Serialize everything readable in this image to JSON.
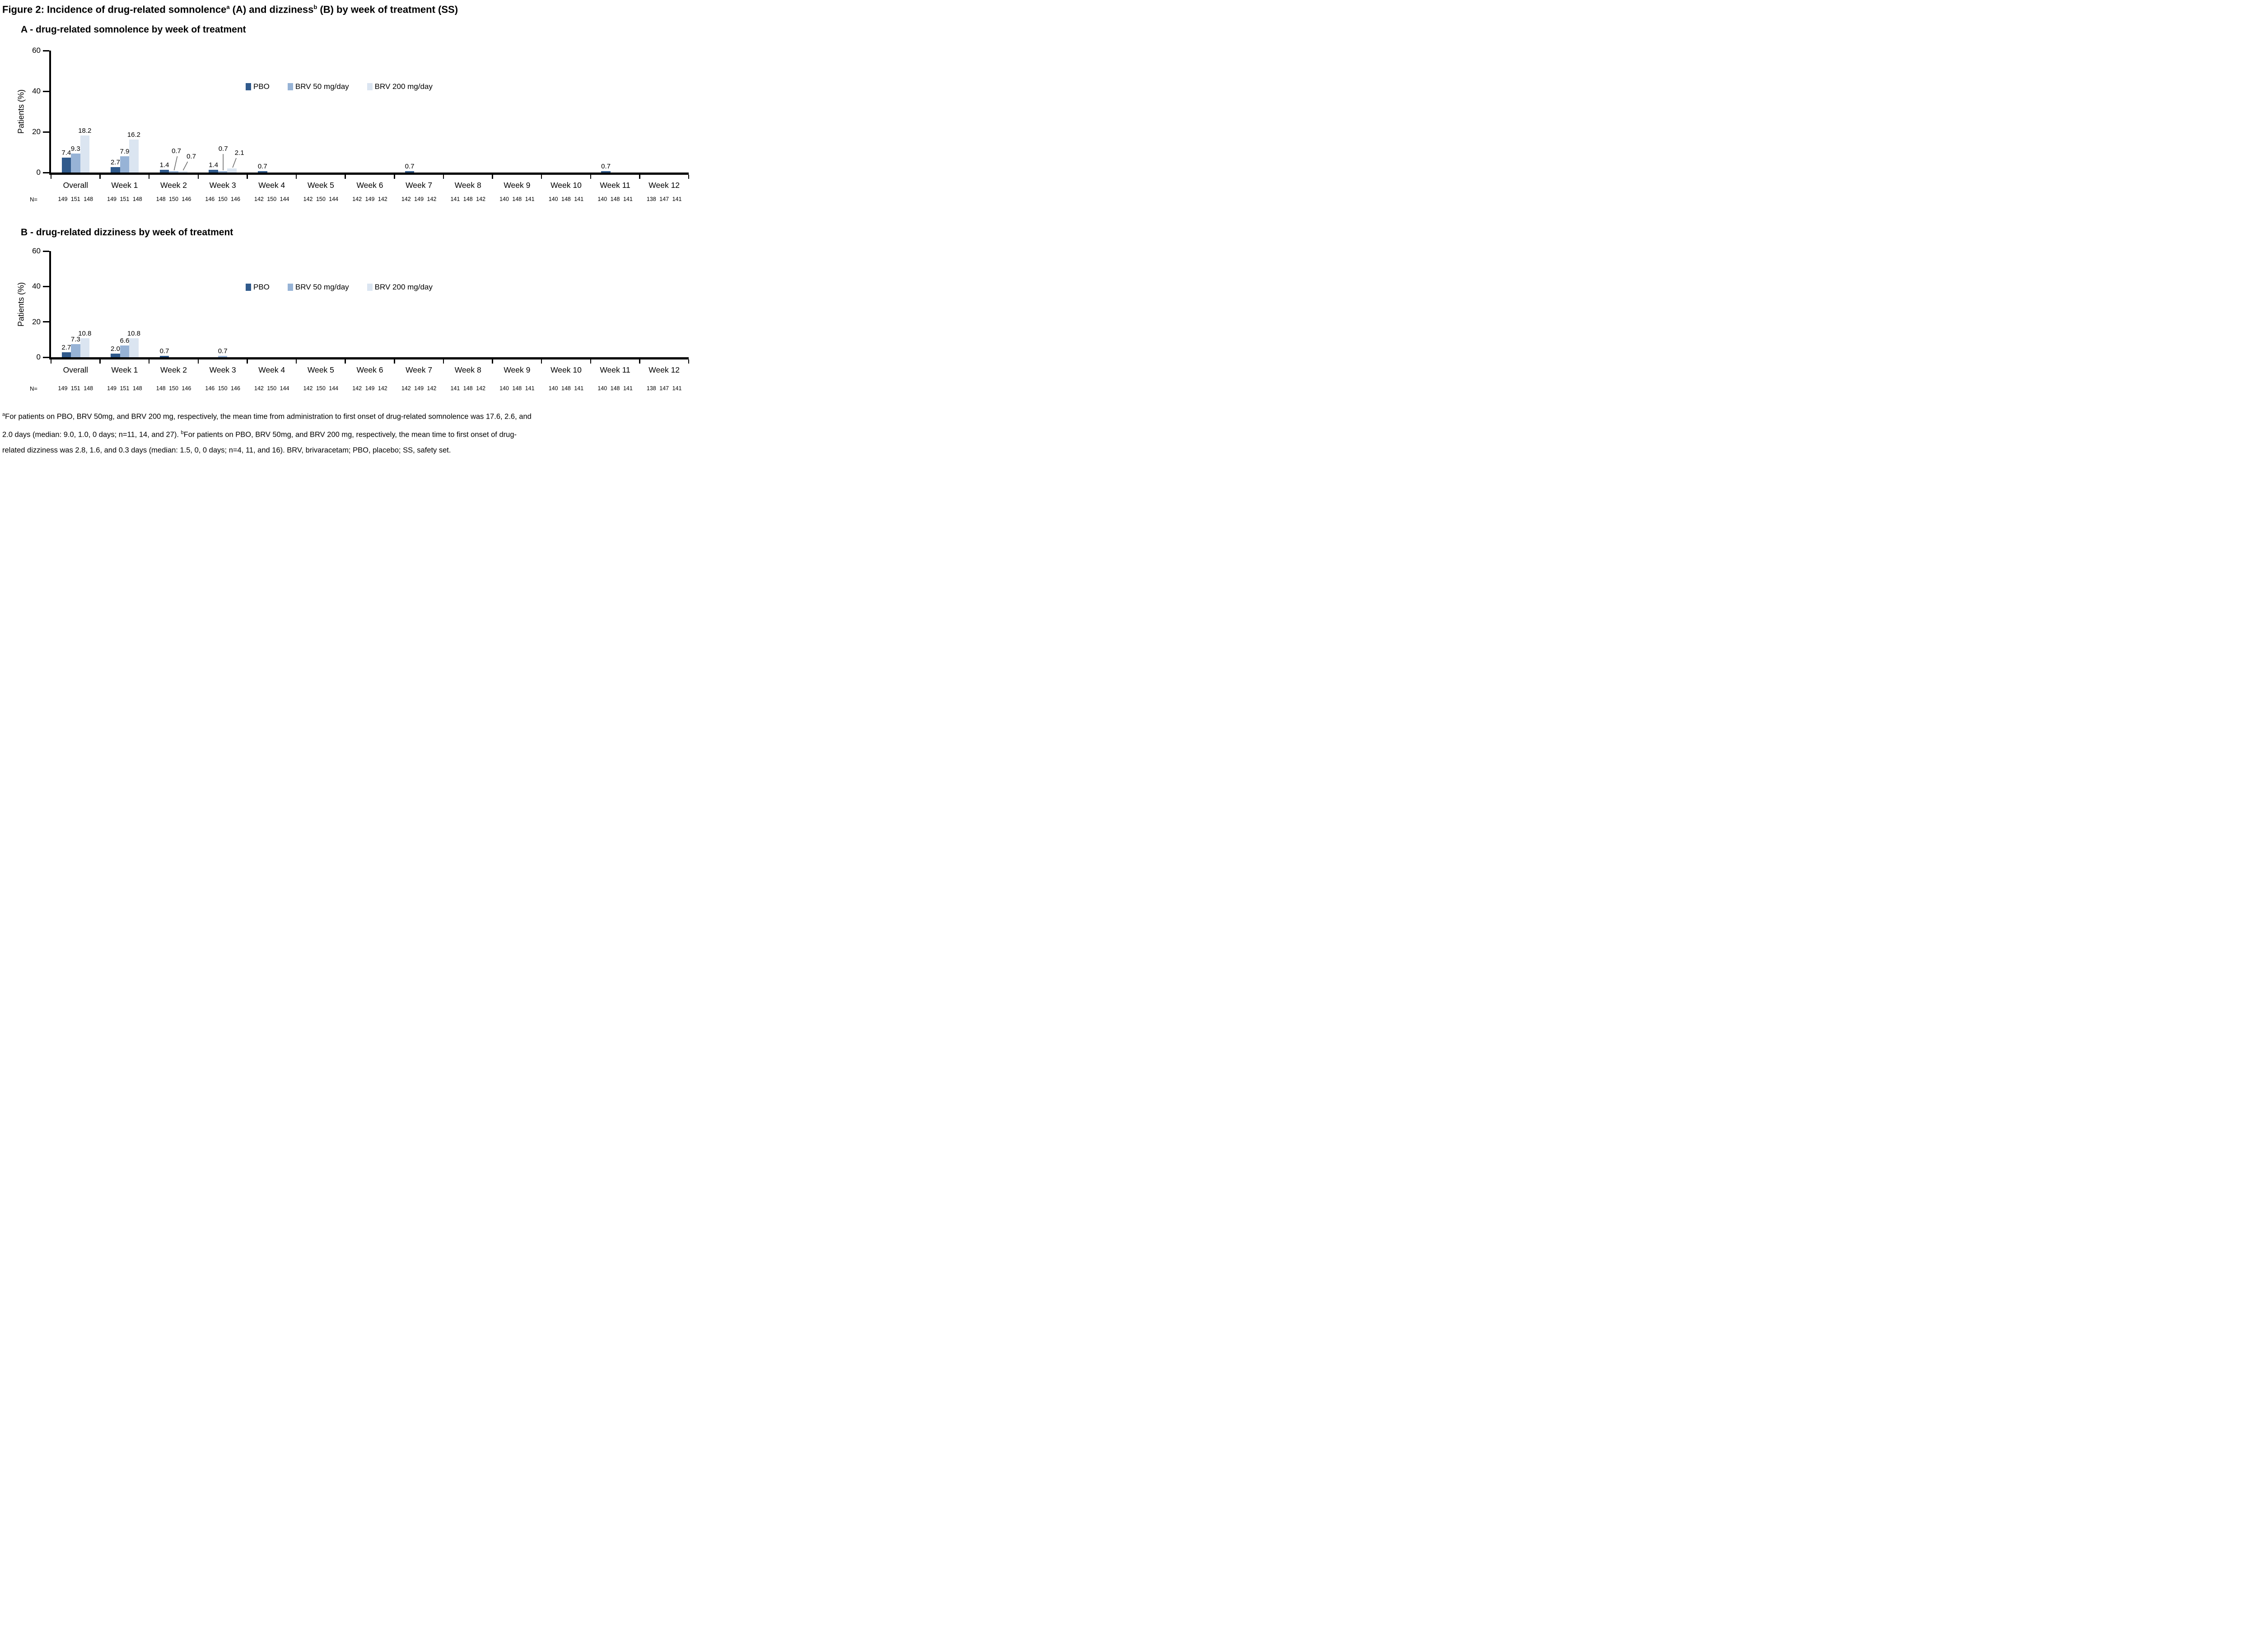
{
  "title_segments": [
    {
      "t": "Figure 2: Incidence of drug-related somnolence"
    },
    {
      "sup": "a"
    },
    {
      "t": " (A) and dizziness"
    },
    {
      "sup": "b"
    },
    {
      "t": " (B) by week of treatment (SS)"
    }
  ],
  "chart_data": [
    {
      "id": "A",
      "type": "bar",
      "heading": "A - drug-related somnolence by week of treatment",
      "ylabel": "Patients (%)",
      "ylim": [
        0,
        60
      ],
      "yticks": [
        0,
        20,
        40,
        60
      ],
      "grid": false,
      "legend_position": "inside-top",
      "categories": [
        "Overall",
        "Week 1",
        "Week 2",
        "Week 3",
        "Week 4",
        "Week 5",
        "Week 6",
        "Week 7",
        "Week 8",
        "Week 9",
        "Week 10",
        "Week 11",
        "Week 12"
      ],
      "series": [
        {
          "name": "PBO",
          "color": "#305A8C",
          "values": [
            7.4,
            2.7,
            1.4,
            1.4,
            0.7,
            0,
            0,
            0.7,
            0,
            0,
            0,
            0.7,
            0
          ]
        },
        {
          "name": "BRV 50 mg/day",
          "color": "#97B3D6",
          "values": [
            9.3,
            7.9,
            0.7,
            0.7,
            0,
            0,
            0,
            0,
            0,
            0,
            0,
            0,
            0
          ]
        },
        {
          "name": "BRV 200 mg/day",
          "color": "#DBE5F1",
          "values": [
            18.2,
            16.2,
            0.7,
            2.1,
            0,
            0,
            0,
            0,
            0,
            0,
            0,
            0,
            0
          ]
        }
      ],
      "callouts": [
        [
          2,
          1
        ],
        [
          2,
          2
        ],
        [
          3,
          1
        ],
        [
          3,
          2
        ]
      ],
      "n_label": "N=",
      "n_values": [
        "149 151 148",
        "149 151 148",
        "148 150 146",
        "146 150 146",
        "142 150 144",
        "142 150 144",
        "142 149 142",
        "142 149 142",
        "141 148 142",
        "140 148 141",
        "140 148 141",
        "140 148 141",
        "138 147 141"
      ]
    },
    {
      "id": "B",
      "type": "bar",
      "heading": "B - drug-related dizziness by week of treatment",
      "ylabel": "Patients (%)",
      "ylim": [
        0,
        60
      ],
      "yticks": [
        0,
        20,
        40,
        60
      ],
      "grid": false,
      "legend_position": "inside-top",
      "categories": [
        "Overall",
        "Week 1",
        "Week 2",
        "Week 3",
        "Week 4",
        "Week 5",
        "Week 6",
        "Week 7",
        "Week 8",
        "Week 9",
        "Week 10",
        "Week 11",
        "Week 12"
      ],
      "series": [
        {
          "name": "PBO",
          "color": "#305A8C",
          "values": [
            2.7,
            2.0,
            0.7,
            0,
            0,
            0,
            0,
            0,
            0,
            0,
            0,
            0,
            0
          ]
        },
        {
          "name": "BRV 50 mg/day",
          "color": "#97B3D6",
          "values": [
            7.3,
            6.6,
            0,
            0.7,
            0,
            0,
            0,
            0,
            0,
            0,
            0,
            0,
            0
          ]
        },
        {
          "name": "BRV 200 mg/day",
          "color": "#DBE5F1",
          "values": [
            10.8,
            10.8,
            0,
            0,
            0,
            0,
            0,
            0,
            0,
            0,
            0,
            0,
            0
          ]
        }
      ],
      "callouts": [],
      "n_label": "N=",
      "n_values": [
        "149 151 148",
        "149 151 148",
        "148 150 146",
        "146 150 146",
        "142 150 144",
        "142 150 144",
        "142 149 142",
        "142 149 142",
        "141 148 142",
        "140 148 141",
        "140 148 141",
        "140 148 141",
        "138 147 141"
      ]
    }
  ],
  "footnote_segments": [
    {
      "sup": "a"
    },
    {
      "t": "For patients on PBO, BRV 50mg, and BRV 200 mg, respectively, the mean time from administration to first onset of drug-related somnolence was 17.6, 2.6, and"
    },
    {
      "br": true
    },
    {
      "t": "2.0 days (median: 9.0, 1.0, 0 days; n=11, 14, and 27). "
    },
    {
      "sup": "b"
    },
    {
      "t": "For patients on PBO, BRV 50mg, and BRV 200 mg, respectively, the mean time to first onset of drug-"
    },
    {
      "br": true
    },
    {
      "t": "related dizziness was 2.8, 1.6, and 0.3 days (median: 1.5, 0, 0 days; n=4, 11, and 16). BRV, brivaracetam; PBO, placebo; SS, safety set."
    }
  ],
  "colors": {
    "pbo": "#305A8C",
    "brv50": "#97B3D6",
    "brv200": "#DBE5F1",
    "axis": "#000000",
    "callout_line": "#6B6B6B"
  }
}
